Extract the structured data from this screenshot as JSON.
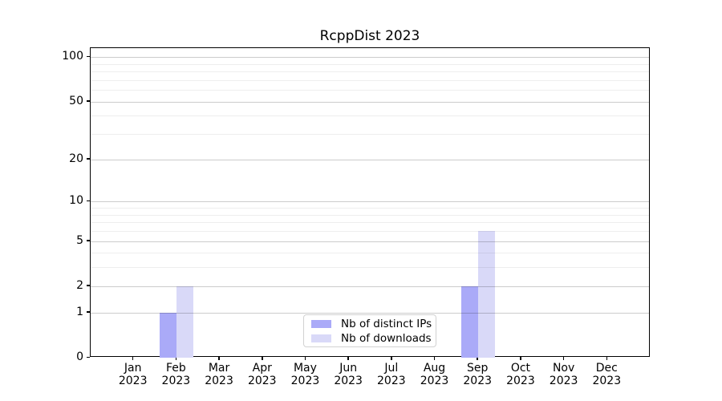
{
  "title": "RcppDist 2023",
  "chart_data": {
    "type": "bar",
    "title": "RcppDist 2023",
    "x_axis": {
      "months": [
        "Jan",
        "Feb",
        "Mar",
        "Apr",
        "May",
        "Jun",
        "Jul",
        "Aug",
        "Sep",
        "Oct",
        "Nov",
        "Dec"
      ],
      "year": "2023"
    },
    "y_axis": {
      "scale": "log1p",
      "ticks": [
        0,
        1,
        2,
        5,
        10,
        20,
        50,
        100
      ],
      "minor_ticks": [
        3,
        4,
        6,
        7,
        8,
        9,
        30,
        40,
        60,
        70,
        80,
        90
      ],
      "max": 115
    },
    "series": [
      {
        "name": "Nb of distinct IPs",
        "color": "#aaaaf8",
        "values": [
          0,
          1,
          0,
          0,
          0,
          0,
          0,
          0,
          2,
          0,
          0,
          0
        ]
      },
      {
        "name": "Nb of downloads",
        "color": "#d9d9f8",
        "values": [
          0,
          2,
          0,
          0,
          0,
          0,
          0,
          0,
          6,
          0,
          0,
          0
        ]
      }
    ],
    "legend_position": "lower center",
    "grid": true
  },
  "colors": {
    "background": "#ffffff",
    "spine": "#000000",
    "major_grid": "#cccccc",
    "minor_grid": "#ececec"
  }
}
